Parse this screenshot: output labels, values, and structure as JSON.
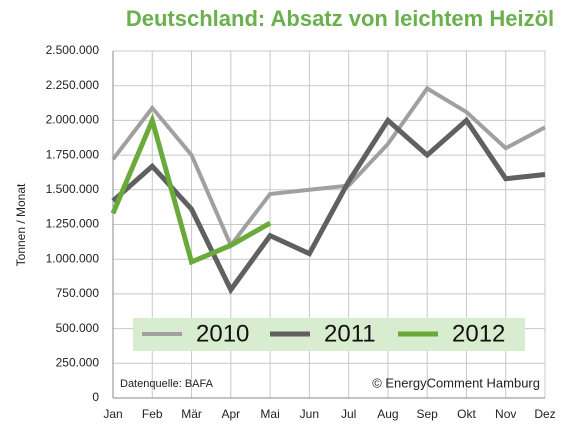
{
  "chart_data": {
    "type": "line",
    "title": "Deutschland: Absatz von leichtem Heizöl",
    "y_label": "Tonnen / Monat",
    "source": "Datenquelle: BAFA",
    "credit": "© EnergyComment Hamburg",
    "categories": [
      "Jan",
      "Feb",
      "Mär",
      "Apr",
      "Mai",
      "Jun",
      "Jul",
      "Aug",
      "Sep",
      "Okt",
      "Nov",
      "Dez"
    ],
    "series": [
      {
        "name": "2010",
        "color": "#a0a0a0",
        "values": [
          1720000,
          2090000,
          1750000,
          1100000,
          1470000,
          1500000,
          1530000,
          1830000,
          2230000,
          2060000,
          1800000,
          1950000
        ]
      },
      {
        "name": "2011",
        "color": "#606060",
        "values": [
          1420000,
          1670000,
          1360000,
          780000,
          1170000,
          1040000,
          1560000,
          2000000,
          1750000,
          2000000,
          1580000,
          1610000
        ]
      },
      {
        "name": "2012",
        "color": "#6aaa3a",
        "values": [
          1330000,
          2000000,
          980000,
          1100000,
          1260000,
          null,
          null,
          null,
          null,
          null,
          null,
          null
        ]
      }
    ],
    "ylim": [
      0,
      2500000
    ],
    "yticks": [
      0,
      {
        "value": 250000,
        "label": "250.000"
      },
      {
        "value": 500000,
        "label": "500.000"
      },
      {
        "value": 750000,
        "label": "750.000"
      },
      {
        "value": 1000000,
        "label": "1.000.000"
      },
      {
        "value": 1250000,
        "label": "1.250.000"
      },
      {
        "value": 1500000,
        "label": "1.500.000"
      },
      {
        "value": 1750000,
        "label": "1.750.000"
      },
      {
        "value": 2000000,
        "label": "2.000.000"
      },
      {
        "value": 2250000,
        "label": "2.250.000"
      },
      {
        "value": 2500000,
        "label": "2.500.000"
      }
    ],
    "grid": true,
    "legend": "bottom"
  }
}
